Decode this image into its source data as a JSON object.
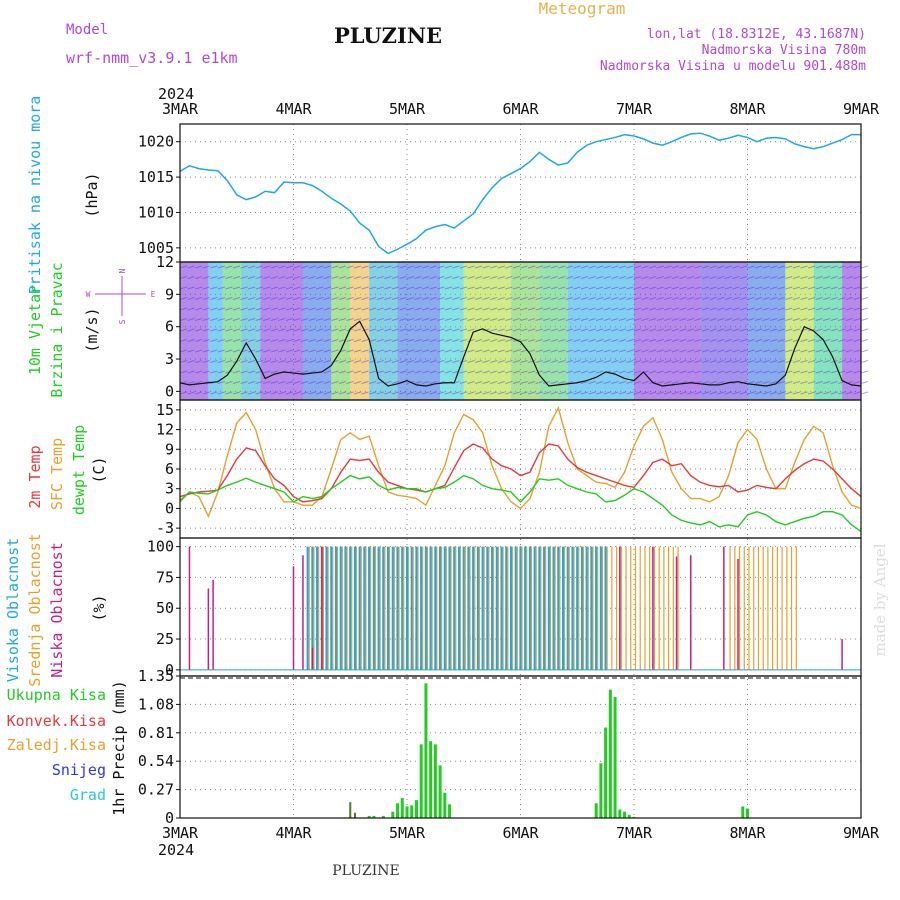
{
  "header": {
    "model_label": "Model",
    "model_name": "wrf-nmm_v3.9.1 e1km",
    "station": "PLUZINE",
    "product": "Meteogram",
    "lonlat": "lon,lat (18.8312E, 43.1687N)",
    "altitude": "Nadmorska Visina 780m",
    "model_altitude": "Nadmorska Visina u modelu 901.488m",
    "footer_station": "PLUZINE",
    "watermark": "made by Angel"
  },
  "colors": {
    "pressure": "#1ea8e8",
    "temp2m": "#e83a3a",
    "sfctemp": "#e8a030",
    "dewpt": "#22cc22",
    "high_cloud": "#1ea8e8",
    "mid_cloud": "#e8a030",
    "low_cloud": "#c0208a",
    "precip": "#22cc22",
    "conv": "#e83a3a",
    "frz": "#e8a030",
    "snow": "#3333ee",
    "grad": "#22cccc",
    "header_purple": "#b048d8",
    "header_orange": "#e8b050"
  },
  "time_axis": {
    "year": "2024",
    "labels": [
      "3MAR",
      "4MAR",
      "5MAR",
      "6MAR",
      "7MAR",
      "8MAR",
      "9MAR"
    ]
  },
  "panels": {
    "pressure": {
      "ylabel": "Pritisak na nivou mora",
      "unit": "(hPa)",
      "ticks": [
        "1005",
        "1010",
        "1015",
        "1020"
      ]
    },
    "wind": {
      "ylabel1": "10m Vjetar",
      "ylabel2": "Brzina i Pravac",
      "unit": "(m/s)",
      "ticks": [
        "0",
        "3",
        "6",
        "9",
        "12"
      ],
      "compass": [
        "N",
        "E",
        "W",
        "S"
      ]
    },
    "temp": {
      "ylabel_2m": "2m Temp",
      "ylabel_sfc": "SFC Temp",
      "ylabel_dew": "dewpt Temp",
      "unit": "(C)",
      "ticks": [
        "-3",
        "0",
        "3",
        "6",
        "9",
        "12",
        "15"
      ]
    },
    "cloud": {
      "ylabel_high": "Visoka Oblacnost",
      "ylabel_mid": "Srednja Oblacnost",
      "ylabel_low": "Niska Oblacnost",
      "unit": "(%)",
      "ticks": [
        "0",
        "25",
        "50",
        "75",
        "100"
      ]
    },
    "precip": {
      "legend": [
        "Ukupna Kisa",
        "Konvek.Kisa",
        "Zaledj.Kisa",
        "Snijeg",
        "Grad"
      ],
      "ylabel": "1hr Precip (mm)",
      "ticks": [
        "0",
        "0.27",
        "0.54",
        "0.81",
        "1.08",
        "1.35"
      ]
    }
  },
  "chart_data": [
    {
      "type": "line",
      "title": "PLUZINE",
      "ylabel": "Pritisak na nivou mora (hPa)",
      "x_unit": "hours from 3MAR 00UTC",
      "ylim": [
        1003,
        1022.5
      ],
      "series": [
        {
          "name": "Pritisak na nivou mora",
          "x": [
            0,
            2,
            4,
            6,
            8,
            10,
            12,
            14,
            16,
            18,
            20,
            22,
            24,
            26,
            28,
            30,
            32,
            34,
            36,
            38,
            40,
            42,
            44,
            46,
            48,
            50,
            52,
            54,
            56,
            58,
            60,
            62,
            64,
            66,
            68,
            70,
            72,
            74,
            76,
            78,
            80,
            82,
            84,
            86,
            88,
            90,
            92,
            94,
            96,
            98,
            100,
            102,
            104,
            106,
            108,
            110,
            112,
            114,
            116,
            118,
            120,
            122,
            124,
            126,
            128,
            130,
            132,
            134,
            136,
            138,
            140,
            142,
            144
          ],
          "y": [
            1015.8,
            1016.6,
            1016.2,
            1016,
            1015.9,
            1014.5,
            1012.5,
            1011.8,
            1012.2,
            1013,
            1012.8,
            1014.3,
            1014.2,
            1014.2,
            1013.8,
            1013,
            1012,
            1011.2,
            1010.2,
            1008.5,
            1007.5,
            1005.2,
            1004.2,
            1004.8,
            1005.5,
            1006.3,
            1007.5,
            1008,
            1008.3,
            1007.8,
            1008.8,
            1009.8,
            1011.8,
            1013.5,
            1014.8,
            1015.5,
            1016.2,
            1017.2,
            1018.5,
            1017.5,
            1016.7,
            1017,
            1018.5,
            1019.5,
            1020,
            1020.3,
            1020.6,
            1021,
            1020.8,
            1020.4,
            1019.8,
            1019.5,
            1020,
            1020.6,
            1021.1,
            1021.2,
            1020.8,
            1020.2,
            1020.5,
            1020.9,
            1020.6,
            1020,
            1020.5,
            1020.6,
            1020.4,
            1019.7,
            1019.3,
            1019,
            1019.3,
            1019.8,
            1020.3,
            1021,
            1021
          ]
        }
      ]
    },
    {
      "type": "line",
      "title": "",
      "ylabel": "10m Vjetar Brzina i Pravac (m/s)",
      "x_unit": "hours from 3MAR 00UTC",
      "ylim": [
        -0.8,
        12
      ],
      "series": [
        {
          "name": "10m Vjetar",
          "x": [
            0,
            2,
            4,
            6,
            8,
            10,
            12,
            14,
            16,
            18,
            20,
            22,
            24,
            26,
            28,
            30,
            32,
            34,
            36,
            38,
            40,
            42,
            44,
            46,
            48,
            50,
            52,
            54,
            56,
            58,
            60,
            62,
            64,
            66,
            68,
            70,
            72,
            74,
            76,
            78,
            80,
            82,
            84,
            86,
            88,
            90,
            92,
            94,
            96,
            98,
            100,
            102,
            104,
            106,
            108,
            110,
            112,
            114,
            116,
            118,
            120,
            122,
            124,
            126,
            128,
            130,
            132,
            134,
            136,
            138,
            140,
            142,
            144
          ],
          "y": [
            0.8,
            0.6,
            0.7,
            0.8,
            0.9,
            1.5,
            2.8,
            4.5,
            3,
            1.2,
            1.6,
            1.8,
            1.7,
            1.6,
            1.7,
            1.8,
            2.4,
            3.8,
            5.8,
            6.5,
            4.8,
            1.2,
            0.5,
            0.7,
            1,
            0.6,
            0.5,
            0.7,
            0.8,
            0.8,
            3.2,
            5.5,
            5.8,
            5.4,
            5.2,
            5,
            4.6,
            3.5,
            1.5,
            0.5,
            0.6,
            0.7,
            0.8,
            1,
            1.3,
            1.8,
            1.6,
            1.2,
            1,
            1.8,
            0.8,
            0.5,
            0.6,
            0.7,
            0.8,
            0.7,
            0.6,
            0.6,
            0.8,
            0.9,
            0.7,
            0.6,
            0.5,
            0.7,
            1.5,
            4,
            6,
            5.6,
            4.8,
            3.2,
            1,
            0.6,
            0.5
          ]
        }
      ]
    },
    {
      "type": "line",
      "title": "",
      "ylabel": "Temp (C)",
      "x_unit": "hours from 3MAR 00UTC",
      "ylim": [
        -4.5,
        16.5
      ],
      "series": [
        {
          "name": "2m Temp",
          "x": [
            0,
            2,
            4,
            6,
            8,
            10,
            12,
            14,
            16,
            18,
            20,
            22,
            24,
            26,
            28,
            30,
            32,
            34,
            36,
            38,
            40,
            42,
            44,
            46,
            48,
            50,
            52,
            54,
            56,
            58,
            60,
            62,
            64,
            66,
            68,
            70,
            72,
            74,
            76,
            78,
            80,
            82,
            84,
            86,
            88,
            90,
            92,
            94,
            96,
            98,
            100,
            102,
            104,
            106,
            108,
            110,
            112,
            114,
            116,
            118,
            120,
            122,
            124,
            126,
            128,
            130,
            132,
            134,
            136,
            138,
            140,
            142,
            144
          ],
          "y": [
            1.8,
            2.2,
            2.5,
            2.6,
            2.8,
            5,
            7.5,
            9.2,
            8.8,
            6.5,
            4.5,
            3.5,
            1.8,
            1,
            1.2,
            1.5,
            3,
            5.5,
            7.5,
            7.3,
            7.5,
            5.5,
            4,
            3.5,
            3,
            2.8,
            2.5,
            3,
            3.5,
            6.2,
            8.8,
            9.8,
            9.2,
            7.5,
            6.5,
            6,
            5,
            5.5,
            8.5,
            9.8,
            9.5,
            7.5,
            6.2,
            5.5,
            5,
            4.5,
            4,
            3.5,
            3.2,
            5,
            7,
            7.5,
            6.5,
            6.8,
            5,
            4,
            3.5,
            3.3,
            3.5,
            2.5,
            2.8,
            3.5,
            3.2,
            3,
            4.5,
            5.8,
            6.8,
            7.5,
            7.2,
            6,
            4.5,
            3,
            1.8
          ]
        },
        {
          "name": "SFC Temp",
          "x": [
            0,
            2,
            4,
            6,
            8,
            10,
            12,
            14,
            16,
            18,
            20,
            22,
            24,
            26,
            28,
            30,
            32,
            34,
            36,
            38,
            40,
            42,
            44,
            46,
            48,
            50,
            52,
            54,
            56,
            58,
            60,
            62,
            64,
            66,
            68,
            70,
            72,
            74,
            76,
            78,
            80,
            82,
            84,
            86,
            88,
            90,
            92,
            94,
            96,
            98,
            100,
            102,
            104,
            106,
            108,
            110,
            112,
            114,
            116,
            118,
            120,
            122,
            124,
            126,
            128,
            130,
            132,
            134,
            136,
            138,
            140,
            142,
            144
          ],
          "y": [
            1,
            2.5,
            1.8,
            -1.2,
            2.5,
            8,
            13,
            14.6,
            12,
            7,
            3,
            1,
            1,
            0.5,
            0.5,
            1.8,
            6,
            10.5,
            11.5,
            10.5,
            11,
            6.5,
            2.5,
            2,
            1.8,
            1.5,
            0.5,
            3.5,
            6.5,
            11.5,
            14.3,
            13.5,
            11.5,
            6.5,
            3,
            1,
            0,
            1.5,
            5.5,
            12.5,
            15.3,
            10,
            6,
            5,
            4,
            3.8,
            3.2,
            5.5,
            9.5,
            12.5,
            13.8,
            10.5,
            5.5,
            3,
            1.5,
            1.5,
            1,
            1.8,
            5,
            10,
            12,
            10.5,
            6,
            3,
            3,
            7,
            10.5,
            12.5,
            11.5,
            6.5,
            2.5,
            0.5,
            0
          ]
        },
        {
          "name": "dewpt Temp",
          "x": [
            0,
            2,
            4,
            6,
            8,
            10,
            12,
            14,
            16,
            18,
            20,
            22,
            24,
            26,
            28,
            30,
            32,
            34,
            36,
            38,
            40,
            42,
            44,
            46,
            48,
            50,
            52,
            54,
            56,
            58,
            60,
            62,
            64,
            66,
            68,
            70,
            72,
            74,
            76,
            78,
            80,
            82,
            84,
            86,
            88,
            90,
            92,
            94,
            96,
            98,
            100,
            102,
            104,
            106,
            108,
            110,
            112,
            114,
            116,
            118,
            120,
            122,
            124,
            126,
            128,
            130,
            132,
            134,
            136,
            138,
            140,
            142,
            144
          ],
          "y": [
            1.2,
            2.5,
            2.3,
            2.2,
            2.8,
            3.5,
            4,
            4.6,
            4,
            3.5,
            3,
            2.5,
            1,
            1.8,
            1.5,
            1.8,
            3,
            4,
            5,
            4.5,
            4.8,
            3.5,
            2.8,
            3.2,
            3,
            3,
            2.5,
            3,
            3.2,
            4,
            5,
            4.5,
            3.5,
            3,
            2.8,
            2.5,
            1,
            2.5,
            4.5,
            4.3,
            4.5,
            3.5,
            3,
            2.5,
            2.2,
            1,
            1.2,
            2,
            3,
            2.5,
            1.5,
            0.5,
            -1,
            -1.8,
            -2.2,
            -2.5,
            -2,
            -2.8,
            -2.5,
            -2.8,
            -1,
            -0.5,
            -1,
            -2,
            -2.5,
            -2,
            -1.5,
            -1.2,
            -0.5,
            -0.5,
            -1,
            -2.5,
            -3.5
          ]
        }
      ]
    },
    {
      "type": "bar",
      "title": "",
      "ylabel": "Oblacnost (%)",
      "x_unit": "hours from 3MAR 00UTC",
      "ylim": [
        0,
        100
      ],
      "note": "Visoka Oblacnost nearly continuous 100% from ~27h to ~90h; Srednja Oblacnost 100% during ~27-105h and ~116-130h; Niska Oblacnost sparse spikes",
      "series": [
        {
          "name": "Niska Oblacnost",
          "x": [
            2,
            6,
            7,
            24,
            26,
            28,
            30,
            93,
            100,
            105,
            108,
            115,
            118,
            140
          ],
          "values": [
            100,
            66,
            73,
            84,
            93,
            18,
            100,
            100,
            100,
            92,
            93,
            100,
            90,
            25
          ]
        },
        {
          "name": "Visoka Oblacnost",
          "x_start": 27,
          "x_end": 90,
          "value": 100
        },
        {
          "name": "Srednja Oblacnost",
          "ranges": [
            [
              27,
              105
            ],
            [
              116,
              130
            ]
          ],
          "value": 100
        }
      ]
    },
    {
      "type": "bar",
      "title": "",
      "ylabel": "1hr Precip (mm)",
      "x_unit": "hours from 3MAR 00UTC",
      "ylim": [
        0,
        1.35
      ],
      "series": [
        {
          "name": "Ukupna Kisa",
          "x": [
            40,
            41,
            43,
            45,
            46,
            47,
            48,
            49,
            50,
            51,
            52,
            53,
            54,
            55,
            56,
            57,
            88,
            89,
            90,
            91,
            92,
            93,
            94,
            95,
            96,
            119,
            120
          ],
          "values": [
            0.02,
            0.02,
            0.02,
            0.06,
            0.14,
            0.19,
            0.11,
            0.12,
            0.17,
            0.7,
            1.28,
            0.73,
            0.7,
            0.5,
            0.24,
            0.13,
            0.14,
            0.52,
            0.86,
            1.22,
            1.15,
            0.08,
            0.06,
            0.03,
            0.01,
            0.11,
            0.09
          ]
        },
        {
          "name": "Zaledj.Kisa",
          "x": [
            36,
            37
          ],
          "values": [
            0.15,
            0.05
          ]
        }
      ]
    }
  ]
}
